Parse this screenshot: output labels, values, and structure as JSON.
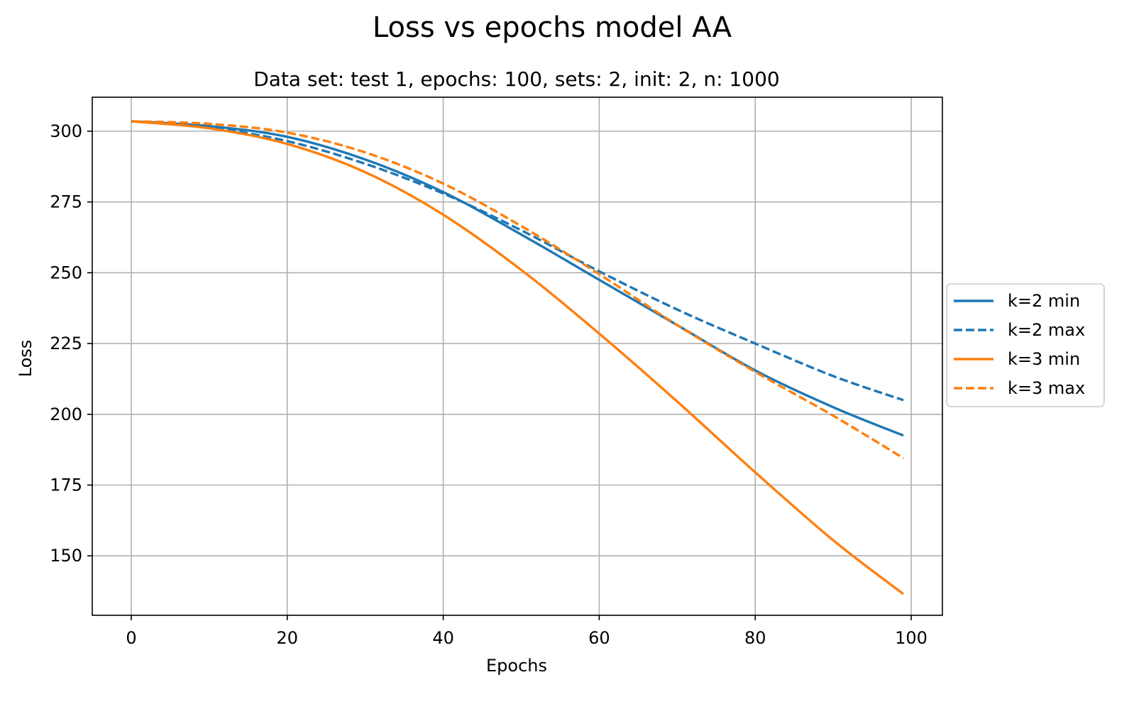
{
  "chart_data": {
    "type": "line",
    "title": "Loss vs epochs model AA",
    "subtitle": "Data set: test 1, epochs: 100, sets: 2, init: 2, n: 1000",
    "xlabel": "Epochs",
    "ylabel": "Loss",
    "xlim": [
      -5,
      104
    ],
    "ylim": [
      129,
      312
    ],
    "xticks": [
      0,
      20,
      40,
      60,
      80,
      100
    ],
    "yticks": [
      150,
      175,
      200,
      225,
      250,
      275,
      300
    ],
    "grid": true,
    "legend_placement": "center-right-outside",
    "x": [
      0,
      10,
      20,
      30,
      40,
      50,
      60,
      70,
      80,
      90,
      99
    ],
    "series": [
      {
        "name": "k=2 min",
        "color": "#1f77b4",
        "style": "solid",
        "values": [
          303.5,
          301.8,
          298.0,
          290.0,
          278.5,
          263.5,
          247.5,
          231.5,
          215.5,
          202.5,
          192.5
        ]
      },
      {
        "name": "k=2 max",
        "color": "#1f77b4",
        "style": "dashed",
        "values": [
          303.5,
          301.3,
          296.5,
          288.5,
          278.0,
          265.0,
          250.5,
          237.0,
          225.0,
          213.5,
          205.0
        ]
      },
      {
        "name": "k=3 min",
        "color": "#ff7f0e",
        "style": "solid",
        "values": [
          303.5,
          301.0,
          295.5,
          285.5,
          270.5,
          251.0,
          228.5,
          204.5,
          179.5,
          155.5,
          136.5
        ]
      },
      {
        "name": "k=3 max",
        "color": "#ff7f0e",
        "style": "dashed",
        "values": [
          303.5,
          302.6,
          299.5,
          292.5,
          281.5,
          266.5,
          249.5,
          231.5,
          215.0,
          199.5,
          184.5
        ]
      }
    ]
  }
}
